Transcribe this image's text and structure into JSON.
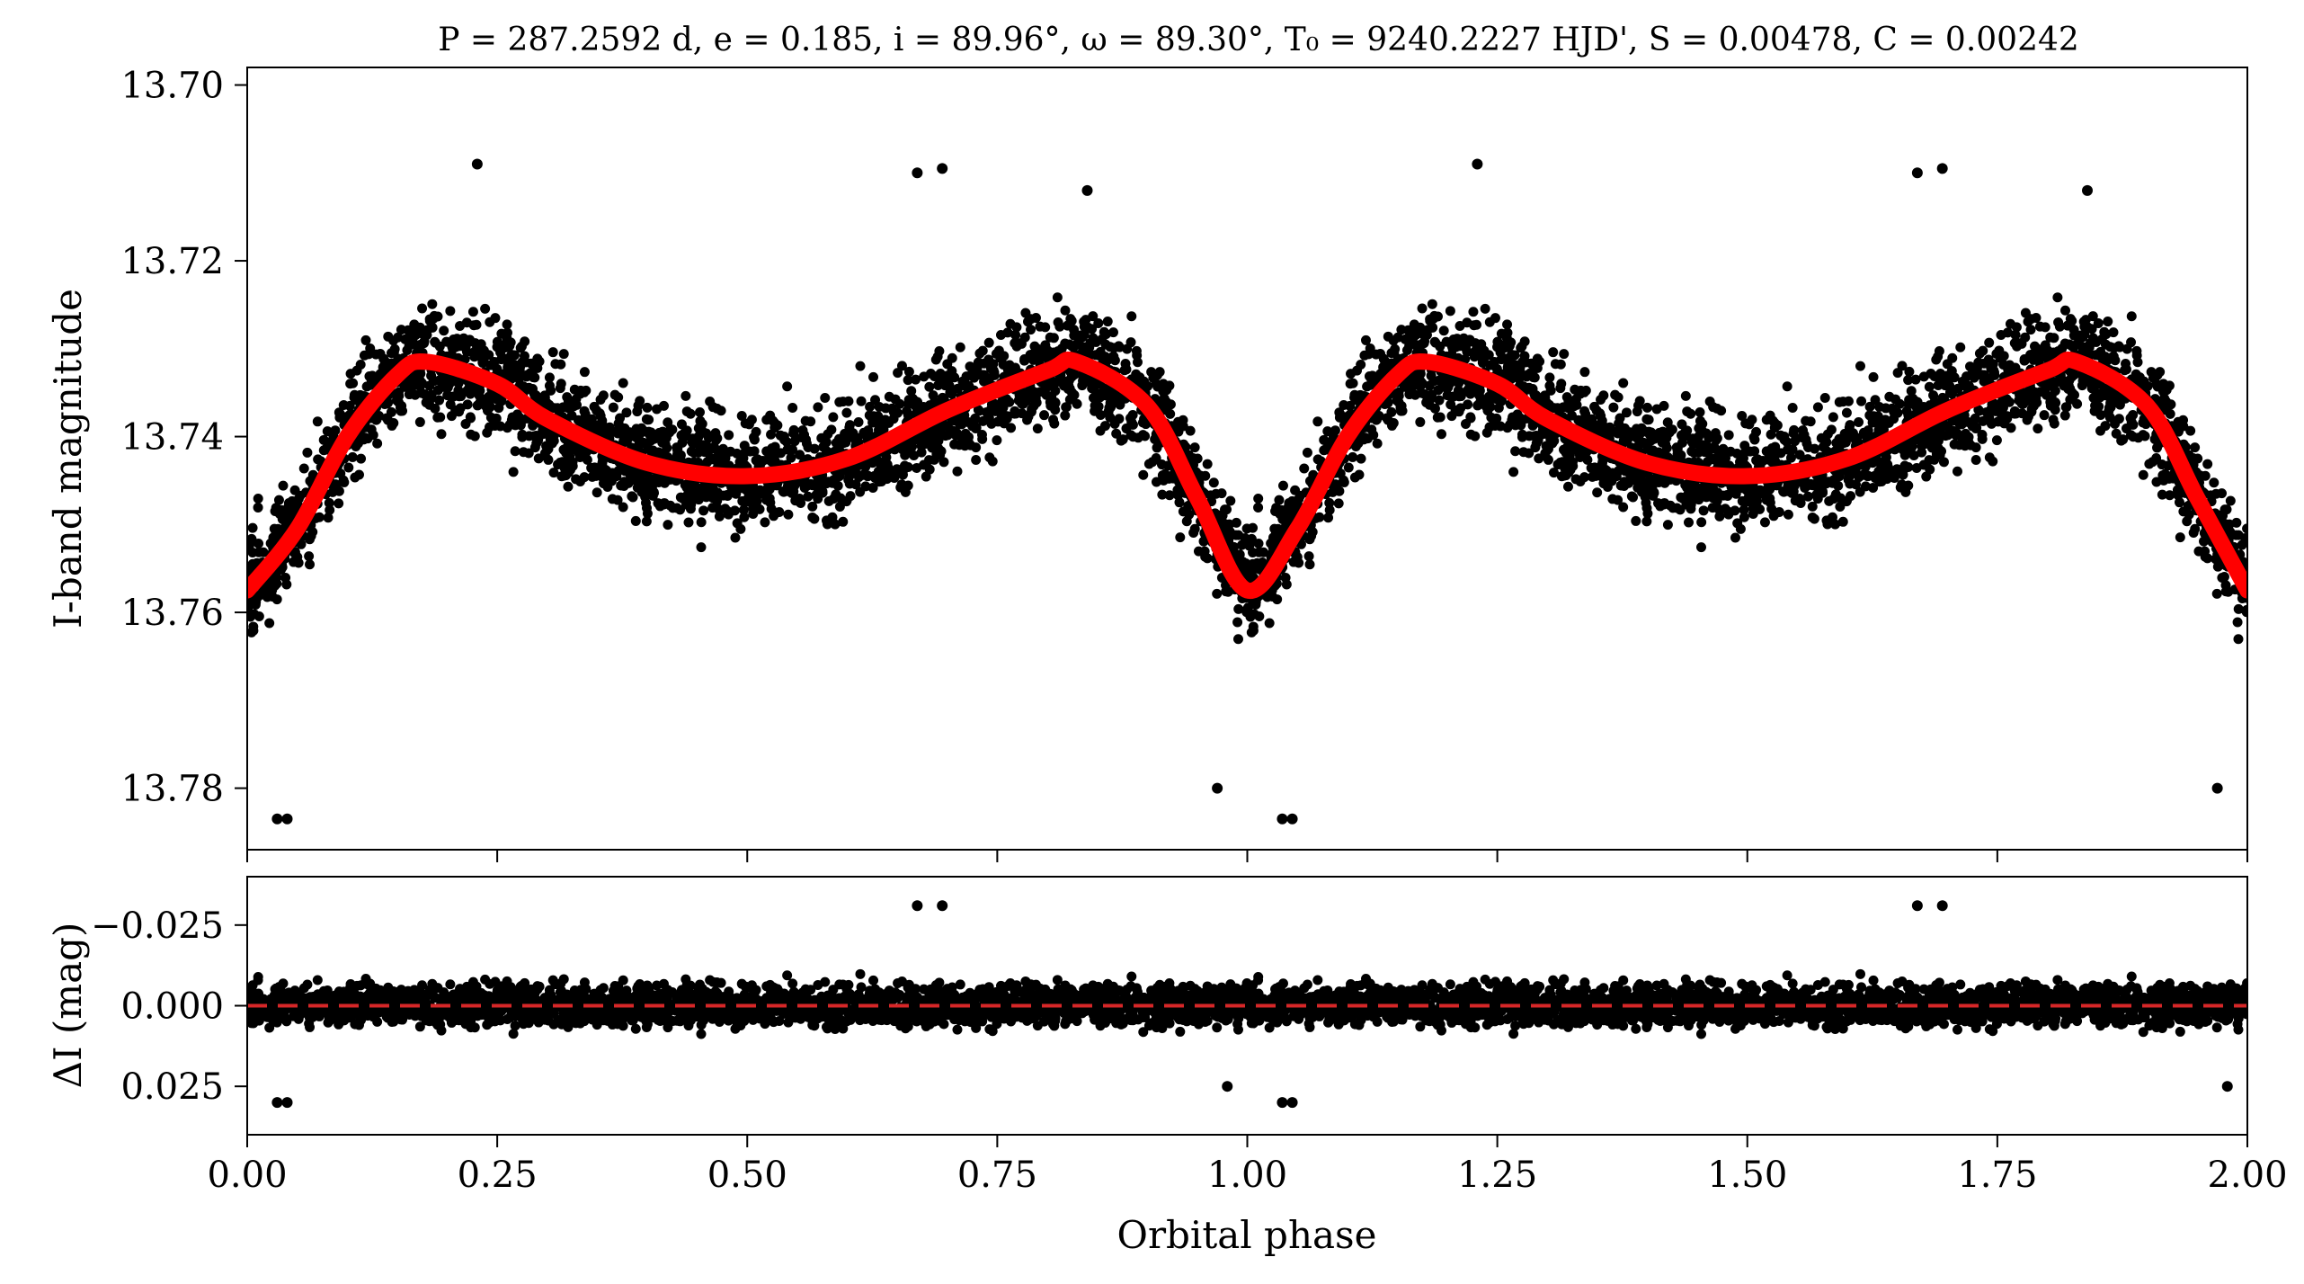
{
  "title": "P = 287.2592 d, e = 0.185, i = 89.96°, ω = 89.30°, T₀ = 9240.2227 HJD', S = 0.00478, C = 0.00242",
  "chart_data": [
    {
      "type": "scatter",
      "panel": "top",
      "ylabel": "I-band magnitude",
      "xlim": [
        0.0,
        2.0
      ],
      "ylim": [
        13.787,
        13.698
      ],
      "y_inverted": true,
      "yticks": [
        13.7,
        13.72,
        13.74,
        13.76,
        13.78
      ],
      "ytick_labels": [
        "13.70",
        "13.72",
        "13.74",
        "13.76",
        "13.78"
      ],
      "grid": false,
      "series": [
        {
          "kind": "observations",
          "mark": "points",
          "color": "#000000",
          "envelope_note": "dense scatter of observations about the model",
          "x": [
            0.0,
            0.05,
            0.1,
            0.15,
            0.18,
            0.25,
            0.3,
            0.4,
            0.5,
            0.6,
            0.7,
            0.8,
            0.83,
            0.9,
            0.95,
            1.0,
            1.05,
            1.1,
            1.15,
            1.18,
            1.25,
            1.3,
            1.4,
            1.5,
            1.6,
            1.7,
            1.8,
            1.83,
            1.9,
            1.95,
            2.0
          ],
          "y": [
            13.7575,
            13.7505,
            13.74,
            13.733,
            13.7315,
            13.734,
            13.738,
            13.743,
            13.7445,
            13.7425,
            13.737,
            13.7325,
            13.7315,
            13.7365,
            13.747,
            13.7575,
            13.7505,
            13.74,
            13.733,
            13.7315,
            13.734,
            13.738,
            13.743,
            13.7445,
            13.7425,
            13.737,
            13.7325,
            13.7315,
            13.7365,
            13.747,
            13.7575
          ],
          "scatter_sigma": 0.0062
        },
        {
          "kind": "model",
          "mark": "line",
          "color": "#ff0000",
          "x": [
            0.0,
            0.05,
            0.1,
            0.15,
            0.18,
            0.25,
            0.3,
            0.4,
            0.5,
            0.6,
            0.7,
            0.8,
            0.83,
            0.9,
            0.95,
            1.0,
            1.05,
            1.1,
            1.15,
            1.18,
            1.25,
            1.3,
            1.4,
            1.5,
            1.6,
            1.7,
            1.8,
            1.83,
            1.9,
            1.95,
            2.0
          ],
          "y": [
            13.7575,
            13.7505,
            13.74,
            13.733,
            13.7315,
            13.734,
            13.738,
            13.743,
            13.7445,
            13.7425,
            13.737,
            13.7325,
            13.7315,
            13.7365,
            13.747,
            13.7575,
            13.7505,
            13.74,
            13.733,
            13.7315,
            13.734,
            13.738,
            13.743,
            13.7445,
            13.7425,
            13.737,
            13.7325,
            13.7315,
            13.7365,
            13.747,
            13.7575
          ]
        }
      ],
      "outliers": [
        {
          "x": 0.03,
          "y": 13.7835
        },
        {
          "x": 0.04,
          "y": 13.7835
        },
        {
          "x": 0.23,
          "y": 13.709
        },
        {
          "x": 0.67,
          "y": 13.71
        },
        {
          "x": 0.695,
          "y": 13.7095
        },
        {
          "x": 0.84,
          "y": 13.712
        },
        {
          "x": 0.97,
          "y": 13.78
        },
        {
          "x": 1.035,
          "y": 13.7835
        },
        {
          "x": 1.045,
          "y": 13.7835
        },
        {
          "x": 1.23,
          "y": 13.709
        },
        {
          "x": 1.67,
          "y": 13.71
        },
        {
          "x": 1.695,
          "y": 13.7095
        },
        {
          "x": 1.84,
          "y": 13.712
        },
        {
          "x": 1.97,
          "y": 13.78
        }
      ]
    },
    {
      "type": "scatter",
      "panel": "bottom",
      "xlabel": "Orbital phase",
      "ylabel": "ΔI (mag)",
      "xlim": [
        0.0,
        2.0
      ],
      "ylim": [
        0.04,
        -0.04
      ],
      "y_inverted": true,
      "xticks": [
        0.0,
        0.25,
        0.5,
        0.75,
        1.0,
        1.25,
        1.5,
        1.75,
        2.0
      ],
      "xtick_labels": [
        "0.00",
        "0.25",
        "0.50",
        "0.75",
        "1.00",
        "1.25",
        "1.50",
        "1.75",
        "2.00"
      ],
      "yticks": [
        -0.025,
        0.0,
        0.025
      ],
      "ytick_labels": [
        "−0.025",
        "0.000",
        "0.025"
      ],
      "grid": false,
      "series": [
        {
          "kind": "residuals",
          "mark": "points",
          "color": "#000000",
          "center": 0.0,
          "scatter_sigma": 0.0062
        },
        {
          "kind": "zero-line",
          "mark": "dashed-line",
          "color": "#d62728",
          "y": 0.0
        }
      ],
      "outliers": [
        {
          "x": 0.03,
          "y": 0.03
        },
        {
          "x": 0.04,
          "y": 0.03
        },
        {
          "x": 0.67,
          "y": -0.031
        },
        {
          "x": 0.695,
          "y": -0.031
        },
        {
          "x": 0.98,
          "y": 0.025
        },
        {
          "x": 1.035,
          "y": 0.03
        },
        {
          "x": 1.045,
          "y": 0.03
        },
        {
          "x": 1.67,
          "y": -0.031
        },
        {
          "x": 1.695,
          "y": -0.031
        },
        {
          "x": 1.98,
          "y": 0.025
        }
      ]
    }
  ]
}
